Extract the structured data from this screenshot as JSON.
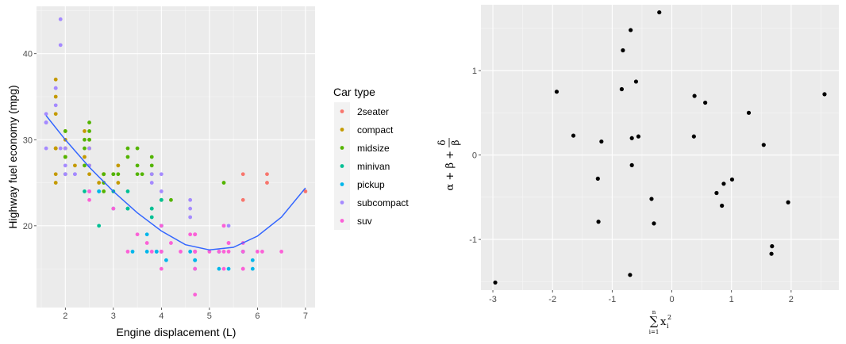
{
  "chart_data": [
    {
      "type": "scatter",
      "xlabel": "Engine displacement (L)",
      "ylabel": "Highway fuel economy (mpg)",
      "xlim": [
        1.4,
        7.2
      ],
      "ylim": [
        10.5,
        45.5
      ],
      "x_ticks": [
        2,
        3,
        4,
        5,
        6,
        7
      ],
      "y_ticks": [
        20,
        30,
        40
      ],
      "grid": true,
      "legend_position": "right",
      "legend_title": "Car type",
      "series": [
        {
          "name": "2seater",
          "color": "#F8766D",
          "points": [
            [
              5.7,
              26
            ],
            [
              5.7,
              23
            ],
            [
              6.2,
              26
            ],
            [
              6.2,
              25
            ],
            [
              7.0,
              24
            ]
          ]
        },
        {
          "name": "compact",
          "color": "#C49A00",
          "points": [
            [
              1.8,
              29
            ],
            [
              1.8,
              29
            ],
            [
              2.0,
              31
            ],
            [
              2.0,
              30
            ],
            [
              2.8,
              26
            ],
            [
              2.8,
              26
            ],
            [
              3.1,
              27
            ],
            [
              1.8,
              26
            ],
            [
              1.8,
              25
            ],
            [
              2.0,
              28
            ],
            [
              2.0,
              28
            ],
            [
              2.8,
              26
            ],
            [
              3.1,
              25
            ],
            [
              1.8,
              33
            ],
            [
              1.8,
              35
            ],
            [
              1.8,
              37
            ],
            [
              1.8,
              29
            ],
            [
              2.0,
              29
            ],
            [
              2.0,
              29
            ],
            [
              2.2,
              27
            ],
            [
              2.4,
              28
            ],
            [
              2.4,
              31
            ],
            [
              2.5,
              30
            ],
            [
              2.5,
              26
            ],
            [
              2.5,
              29
            ],
            [
              2.5,
              27
            ],
            [
              2.5,
              29
            ],
            [
              2.7,
              25
            ]
          ]
        },
        {
          "name": "midsize",
          "color": "#53B400",
          "points": [
            [
              2.4,
              27
            ],
            [
              2.4,
              30
            ],
            [
              2.5,
              32
            ],
            [
              2.5,
              31
            ],
            [
              3.0,
              26
            ],
            [
              3.0,
              26
            ],
            [
              3.3,
              29
            ],
            [
              3.3,
              28
            ],
            [
              3.5,
              26
            ],
            [
              3.6,
              26
            ],
            [
              3.8,
              26
            ],
            [
              3.8,
              28
            ],
            [
              3.8,
              27
            ],
            [
              2.8,
              25
            ],
            [
              2.8,
              24
            ],
            [
              3.1,
              26
            ],
            [
              4.2,
              23
            ],
            [
              5.3,
              25
            ],
            [
              2.0,
              31
            ],
            [
              2.0,
              28
            ],
            [
              2.5,
              30
            ],
            [
              2.8,
              26
            ],
            [
              3.5,
              29
            ],
            [
              3.5,
              27
            ],
            [
              2.4,
              29
            ],
            [
              2.0,
              26
            ],
            [
              4.0,
              23
            ]
          ]
        },
        {
          "name": "minivan",
          "color": "#00C094",
          "points": [
            [
              2.4,
              24
            ],
            [
              3.0,
              24
            ],
            [
              3.3,
              22
            ],
            [
              3.3,
              22
            ],
            [
              3.3,
              24
            ],
            [
              3.8,
              22
            ],
            [
              3.8,
              21
            ],
            [
              3.8,
              22
            ],
            [
              4.0,
              23
            ],
            [
              2.7,
              20
            ]
          ]
        },
        {
          "name": "pickup",
          "color": "#00B6EB",
          "points": [
            [
              3.7,
              19
            ],
            [
              3.7,
              17
            ],
            [
              3.9,
              17
            ],
            [
              3.9,
              17
            ],
            [
              4.7,
              16
            ],
            [
              4.7,
              15
            ],
            [
              4.7,
              17
            ],
            [
              5.2,
              17
            ],
            [
              5.2,
              15
            ],
            [
              5.7,
              17
            ],
            [
              5.9,
              15
            ],
            [
              4.7,
              16
            ],
            [
              4.7,
              16
            ],
            [
              5.7,
              17
            ],
            [
              5.9,
              16
            ],
            [
              4.0,
              20
            ],
            [
              4.0,
              20
            ],
            [
              4.6,
              17
            ],
            [
              5.4,
              15
            ],
            [
              2.7,
              24
            ],
            [
              3.4,
              17
            ],
            [
              4.0,
              17
            ],
            [
              2.7,
              24
            ],
            [
              3.0,
              22
            ],
            [
              4.1,
              16
            ]
          ]
        },
        {
          "name": "subcompact",
          "color": "#A58AFF",
          "points": [
            [
              3.8,
              26
            ],
            [
              3.8,
              25
            ],
            [
              4.0,
              26
            ],
            [
              4.0,
              24
            ],
            [
              4.6,
              21
            ],
            [
              4.6,
              22
            ],
            [
              4.6,
              23
            ],
            [
              5.4,
              20
            ],
            [
              1.6,
              33
            ],
            [
              1.6,
              32
            ],
            [
              1.6,
              32
            ],
            [
              1.6,
              29
            ],
            [
              1.6,
              32
            ],
            [
              1.8,
              34
            ],
            [
              1.8,
              36
            ],
            [
              1.8,
              36
            ],
            [
              2.0,
              29
            ],
            [
              2.0,
              26
            ],
            [
              2.0,
              27
            ],
            [
              1.9,
              44
            ],
            [
              1.9,
              41
            ],
            [
              1.9,
              29
            ],
            [
              2.0,
              26
            ],
            [
              2.5,
              29
            ],
            [
              2.5,
              27
            ],
            [
              2.5,
              24
            ],
            [
              2.5,
              24
            ],
            [
              2.2,
              26
            ],
            [
              2.2,
              26
            ]
          ]
        },
        {
          "name": "suv",
          "color": "#FB61D7",
          "points": [
            [
              5.3,
              20
            ],
            [
              5.3,
              15
            ],
            [
              5.3,
              20
            ],
            [
              5.7,
              17
            ],
            [
              6.0,
              17
            ],
            [
              5.7,
              15
            ],
            [
              5.7,
              15
            ],
            [
              6.5,
              17
            ],
            [
              4.7,
              12
            ],
            [
              4.7,
              17
            ],
            [
              4.7,
              17
            ],
            [
              4.7,
              15
            ],
            [
              4.7,
              17
            ],
            [
              5.2,
              17
            ],
            [
              4.2,
              18
            ],
            [
              4.4,
              17
            ],
            [
              5.4,
              18
            ],
            [
              5.4,
              18
            ],
            [
              3.7,
              18
            ],
            [
              4.7,
              19
            ],
            [
              4.7,
              19
            ],
            [
              5.4,
              17
            ],
            [
              5.7,
              18
            ],
            [
              4.0,
              20
            ],
            [
              4.0,
              15
            ],
            [
              4.0,
              17
            ],
            [
              4.6,
              19
            ],
            [
              5.0,
              17
            ],
            [
              3.0,
              22
            ],
            [
              3.5,
              19
            ],
            [
              3.3,
              17
            ],
            [
              2.5,
              24
            ],
            [
              2.5,
              23
            ],
            [
              3.8,
              17
            ],
            [
              4.0,
              17
            ],
            [
              4.7,
              19
            ],
            [
              6.1,
              17
            ],
            [
              5.3,
              17
            ]
          ]
        }
      ],
      "smooth": {
        "color": "#3366FF",
        "x": [
          1.6,
          2.0,
          2.5,
          3.0,
          3.5,
          4.0,
          4.5,
          5.0,
          5.5,
          6.0,
          6.5,
          7.0
        ],
        "y": [
          32.8,
          30.0,
          26.8,
          24.0,
          21.5,
          19.4,
          17.8,
          17.2,
          17.5,
          18.8,
          21.0,
          24.4
        ]
      }
    },
    {
      "type": "scatter",
      "xlim": [
        -3.2,
        2.8
      ],
      "ylim": [
        -1.6,
        1.78
      ],
      "x_ticks": [
        -3,
        -2,
        -1,
        0,
        1,
        2
      ],
      "y_ticks": [
        -1,
        0,
        1
      ],
      "grid": true,
      "color": "#000000",
      "x": [
        -2.96,
        -1.93,
        -1.65,
        -1.24,
        -1.23,
        -1.18,
        -0.84,
        -0.82,
        -0.7,
        -0.69,
        -0.67,
        -0.67,
        -0.6,
        -0.56,
        -0.34,
        -0.3,
        -0.21,
        0.37,
        0.38,
        0.56,
        0.75,
        0.84,
        0.87,
        1.01,
        1.29,
        1.54,
        1.67,
        1.68,
        1.95,
        2.56
      ],
      "y": [
        -1.51,
        0.75,
        0.23,
        -0.28,
        -0.79,
        0.16,
        0.78,
        1.24,
        -1.42,
        1.48,
        -0.12,
        0.2,
        0.87,
        0.22,
        -0.52,
        -0.81,
        1.69,
        0.22,
        0.7,
        0.62,
        -0.45,
        -0.6,
        -0.34,
        -0.29,
        0.5,
        0.12,
        -1.17,
        -1.08,
        -0.56,
        0.72
      ]
    }
  ],
  "left_plot": {
    "xlabel": "Engine displacement (L)",
    "ylabel": "Highway fuel economy (mpg)",
    "x_ticks": [
      "2",
      "3",
      "4",
      "5",
      "6",
      "7"
    ],
    "y_ticks": [
      "20",
      "30",
      "40"
    ],
    "legend_title": "Car type",
    "legend_items": [
      "2seater",
      "compact",
      "midsize",
      "minivan",
      "pickup",
      "subcompact",
      "suv"
    ]
  },
  "right_plot": {
    "x_ticks": [
      "-3",
      "-2",
      "-1",
      "0",
      "1",
      "2"
    ],
    "y_ticks": [
      "-1",
      "0",
      "1"
    ],
    "y_math": {
      "lhs": "α + β +",
      "num": "δ",
      "den": "β"
    },
    "x_math": {
      "sum": "∑",
      "upper": "n",
      "lower": "i=1",
      "var": "x",
      "sub": "i",
      "sup": "2"
    }
  }
}
